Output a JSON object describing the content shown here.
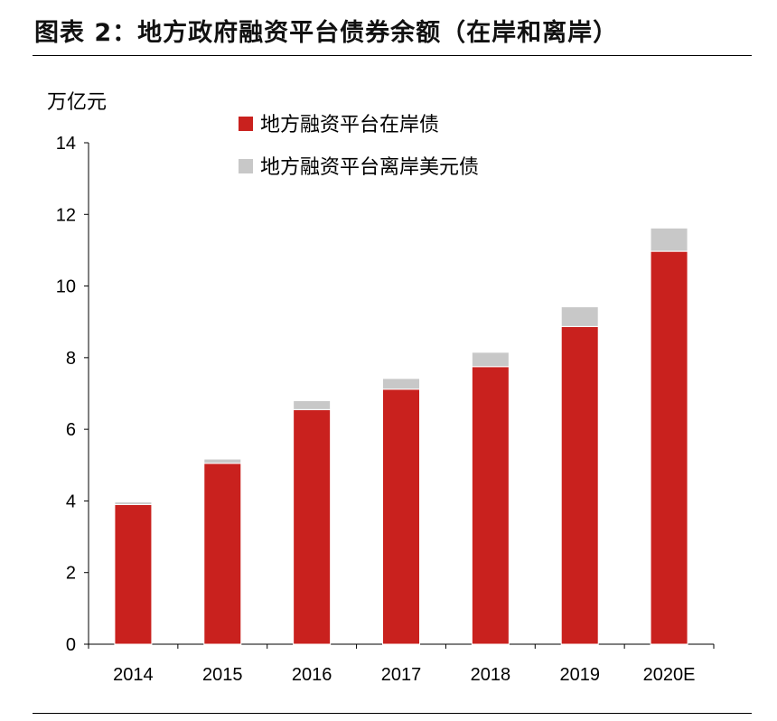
{
  "figure": {
    "title": "图表 2：地方政府融资平台债券余额（在岸和离岸）"
  },
  "chart_data": {
    "type": "bar",
    "stacked": true,
    "categories": [
      "2014",
      "2015",
      "2016",
      "2017",
      "2018",
      "2019",
      "2020E"
    ],
    "series": [
      {
        "name": "地方融资平台在岸债",
        "color": "#c9211e",
        "values": [
          3.9,
          5.05,
          6.55,
          7.12,
          7.75,
          8.87,
          10.97
        ]
      },
      {
        "name": "地方融资平台离岸美元债",
        "color": "#c8c8c8",
        "values": [
          0.07,
          0.12,
          0.25,
          0.3,
          0.4,
          0.55,
          0.65
        ]
      }
    ],
    "ylabel": "万亿元",
    "ylim": [
      0,
      14
    ],
    "yticks": [
      0,
      2,
      4,
      6,
      8,
      10,
      12,
      14
    ],
    "grid": false,
    "legend": "top"
  }
}
